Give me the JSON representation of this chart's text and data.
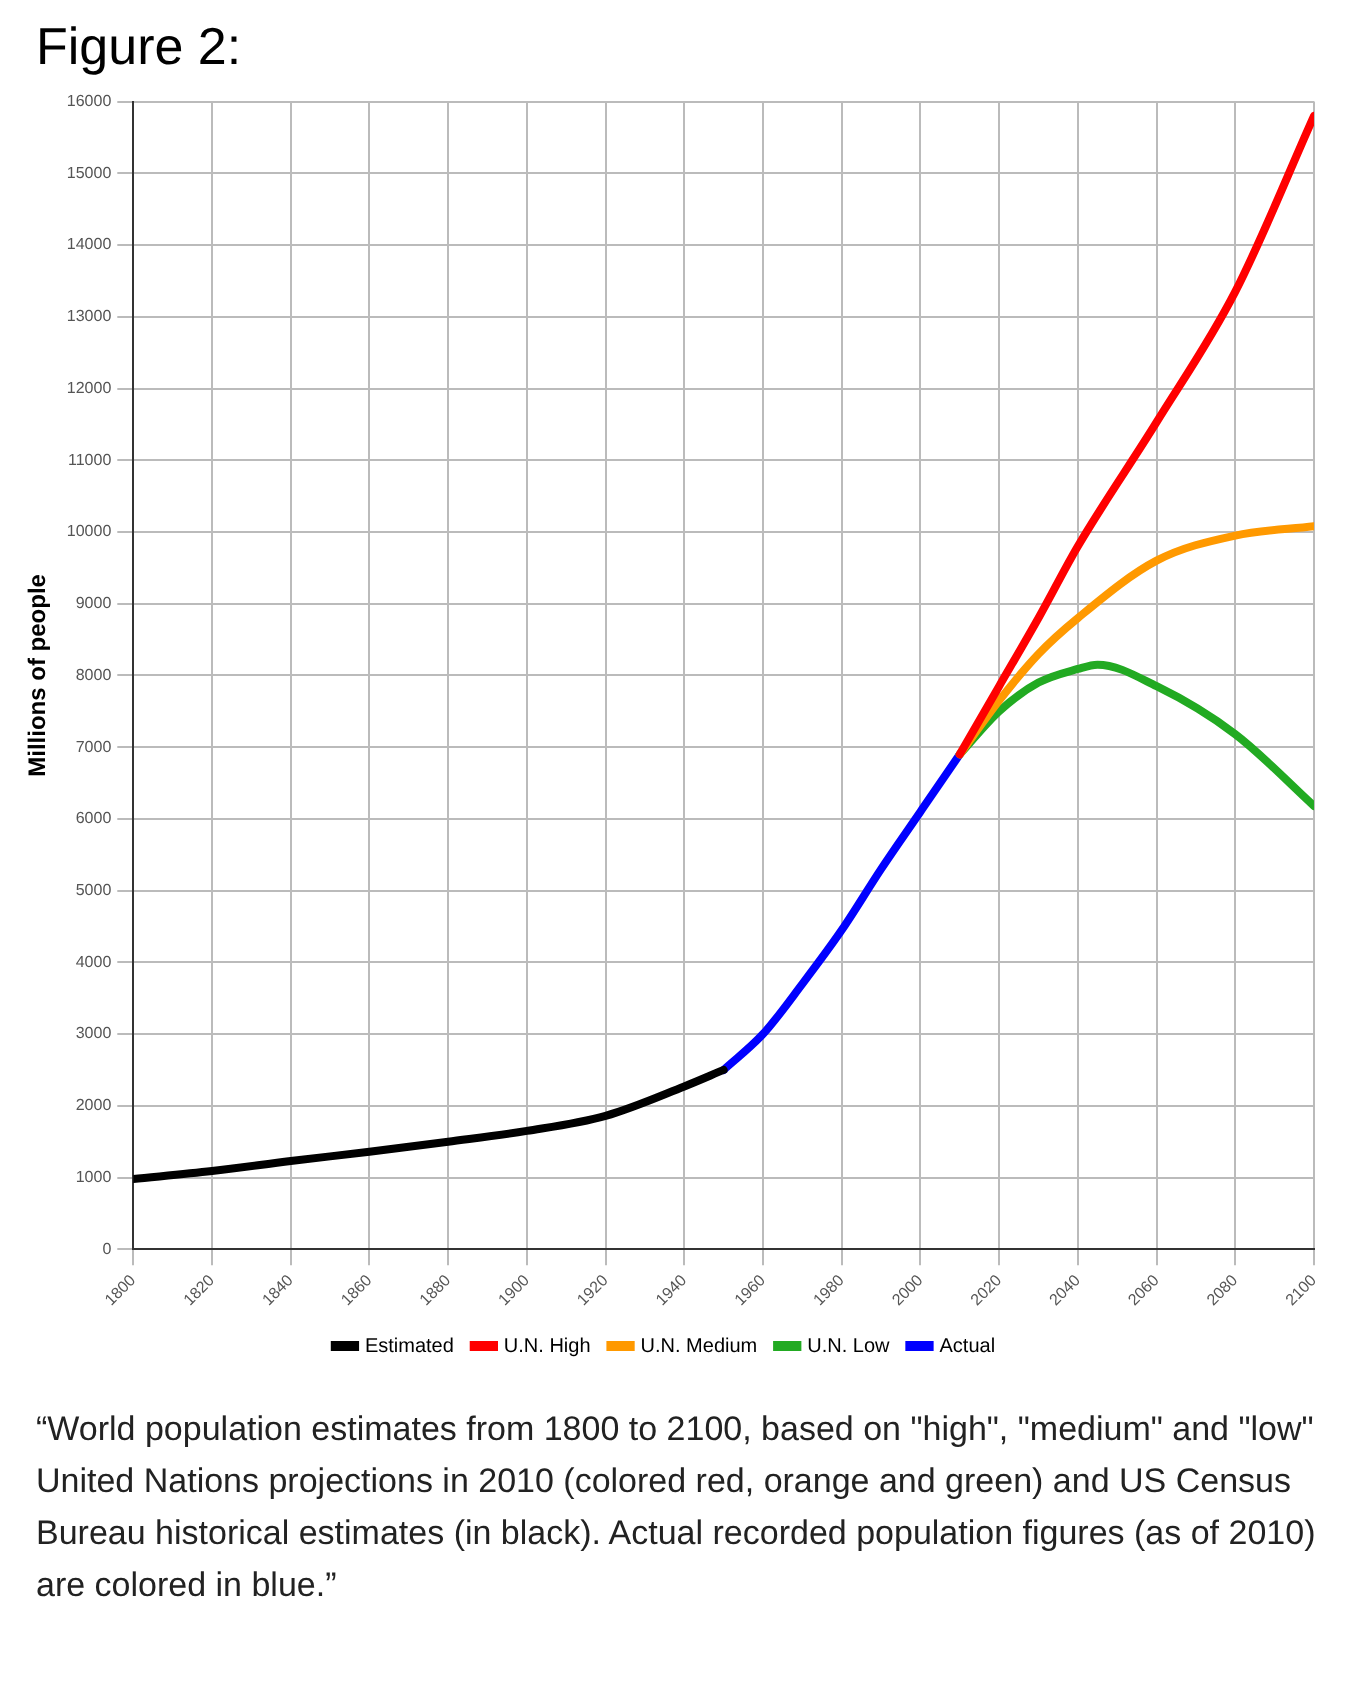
{
  "chart_data": {
    "type": "line",
    "title": "Figure 2:",
    "ylabel": "Millions of people",
    "xlim": [
      1800,
      2100
    ],
    "xticks": [
      1800,
      1820,
      1840,
      1860,
      1880,
      1900,
      1920,
      1940,
      1960,
      1980,
      2000,
      2020,
      2040,
      2060,
      2080,
      2100
    ],
    "ylim": [
      0,
      16000
    ],
    "yticks": [
      0,
      1000,
      2000,
      3000,
      4000,
      5000,
      6000,
      7000,
      8000,
      9000,
      10000,
      11000,
      12000,
      13000,
      14000,
      15000,
      16000
    ],
    "grid": true,
    "legend": "bottom",
    "marker": "none",
    "line_style": "solid",
    "series": [
      {
        "name": "Estimated",
        "color": "#000000",
        "x": [
          1800,
          1820,
          1840,
          1860,
          1880,
          1900,
          1920,
          1940,
          1950
        ],
        "values": [
          980,
          1090,
          1230,
          1360,
          1500,
          1650,
          1860,
          2270,
          2500
        ]
      },
      {
        "name": "U.N. High",
        "color": "#ff0000",
        "x": [
          2010,
          2020,
          2030,
          2040,
          2060,
          2080,
          2100
        ],
        "values": [
          6900,
          7850,
          8800,
          9800,
          11530,
          13350,
          15800
        ]
      },
      {
        "name": "U.N. Medium",
        "color": "#ff9900",
        "x": [
          2010,
          2020,
          2030,
          2040,
          2060,
          2080,
          2100
        ],
        "values": [
          6900,
          7650,
          8300,
          8800,
          9600,
          9950,
          10080
        ]
      },
      {
        "name": "U.N. Low",
        "color": "#22aa22",
        "x": [
          2010,
          2020,
          2030,
          2040,
          2045,
          2060,
          2080,
          2100
        ],
        "values": [
          6900,
          7500,
          7900,
          8090,
          8150,
          7850,
          7180,
          6180
        ]
      },
      {
        "name": "Actual",
        "color": "#0000ff",
        "x": [
          1950,
          1960,
          1970,
          1980,
          1990,
          2000,
          2010
        ],
        "values": [
          2500,
          3000,
          3700,
          4450,
          5300,
          6100,
          6900
        ]
      }
    ],
    "annotations": [
      "“World population estimates from 1800 to 2100, based on \"high\", \"medium\" and \"low\" United Nations projections in 2010 (colored red, orange and green) and US Census Bureau historical estimates (in black). Actual recorded population figures (as of 2010) are colored in blue.”"
    ]
  }
}
